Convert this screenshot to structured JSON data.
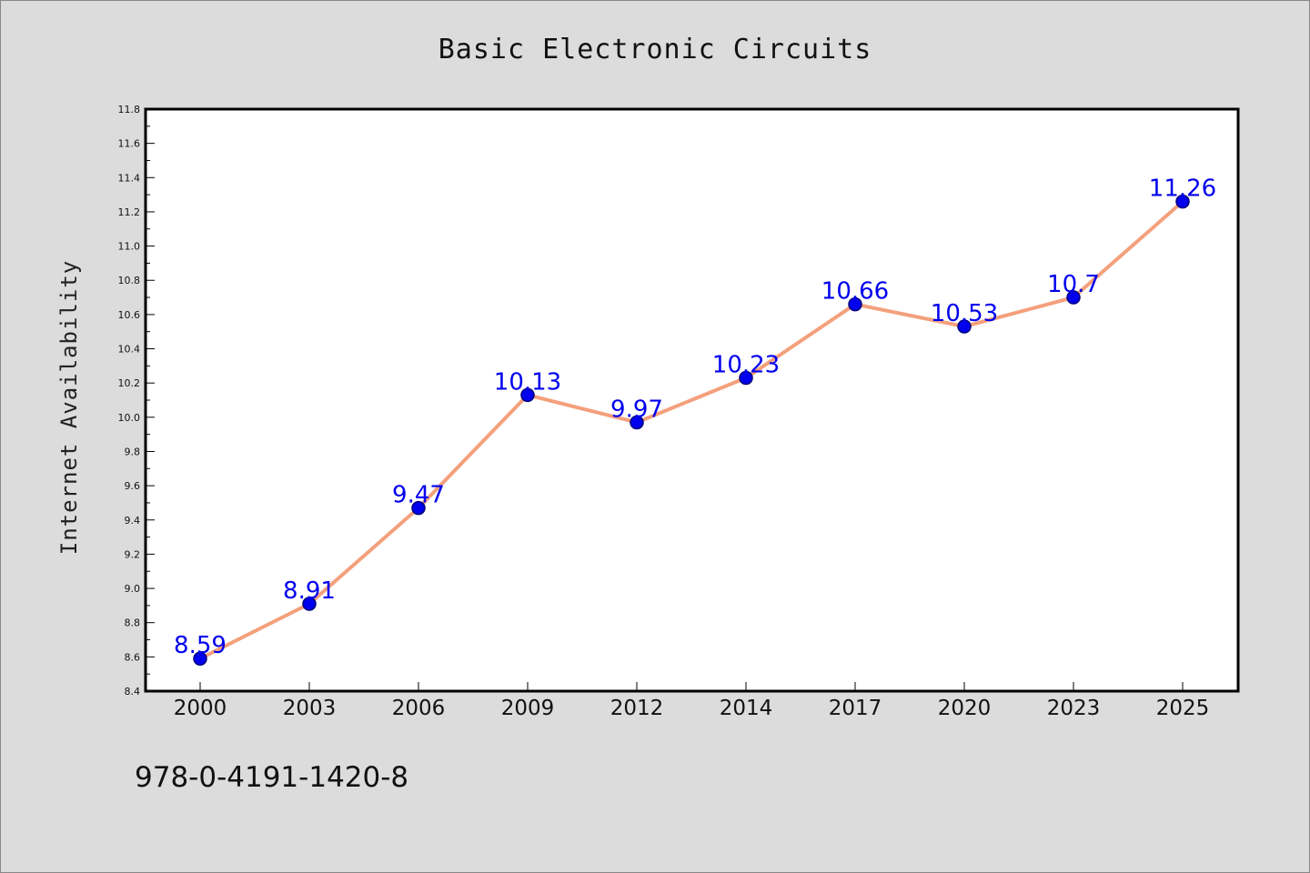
{
  "colors": {
    "background": "#dcdcdc",
    "plot_background": "#ffffff",
    "line": "#f4a07c",
    "marker_fill": "#0000ee",
    "marker_edge": "#00007a",
    "data_label": "#0000ee",
    "border": "#000000"
  },
  "footer": {
    "isbn": "978-0-4191-1420-8"
  },
  "chart_data": {
    "type": "line",
    "title": "Basic Electronic Circuits",
    "xlabel": "",
    "ylabel": "Internet Availability",
    "categories": [
      "2000",
      "2003",
      "2006",
      "2009",
      "2012",
      "2014",
      "2017",
      "2020",
      "2023",
      "2025"
    ],
    "series": [
      {
        "values": [
          8.59,
          8.91,
          9.47,
          10.13,
          9.97,
          10.23,
          10.66,
          10.53,
          10.7,
          11.26
        ],
        "data_labels": [
          "8.59",
          "8.91",
          "9.47",
          "10.13",
          "9.97",
          "10.23",
          "10.66",
          "10.53",
          "10.7",
          "11.26"
        ]
      }
    ],
    "ylim": [
      8.4,
      11.8
    ],
    "yticks": [
      "8.4",
      "8.6",
      "8.8",
      "9.0",
      "9.2",
      "9.4",
      "9.6",
      "9.8",
      "10.0",
      "10.2",
      "10.4",
      "10.6",
      "10.8",
      "11.0",
      "11.2",
      "11.4",
      "11.6",
      "11.8"
    ],
    "grid": false,
    "legend": "none"
  }
}
